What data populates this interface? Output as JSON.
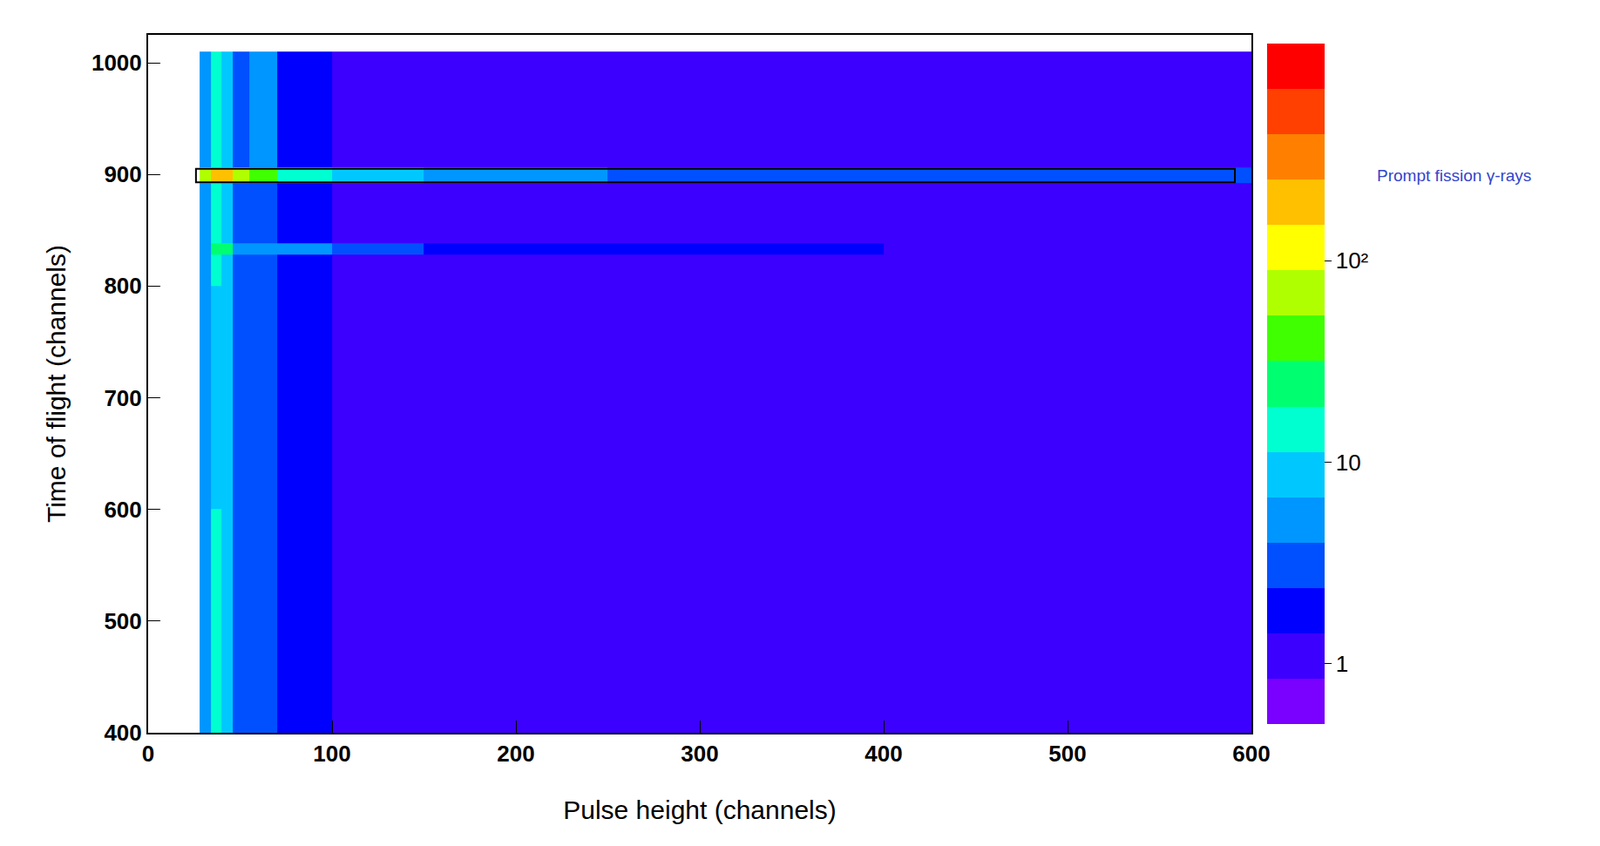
{
  "chart_data": {
    "type": "heatmap",
    "x_label": "Pulse height (channels)",
    "y_label": "Time of flight (channels)",
    "xlim": [
      0,
      600
    ],
    "ylim": [
      400,
      1025
    ],
    "xticks": [
      0,
      100,
      200,
      300,
      400,
      500,
      600
    ],
    "yticks": [
      400,
      500,
      600,
      700,
      800,
      900,
      1000
    ],
    "grid": false,
    "log": true,
    "x_bins": [
      28,
      34,
      40,
      46,
      55,
      70,
      100,
      150,
      250,
      400,
      600
    ],
    "y_bins": [
      400,
      500,
      600,
      700,
      800,
      828,
      838,
      892,
      906,
      1010
    ],
    "z": [
      [
        4,
        12,
        10,
        3,
        3,
        2,
        1.3,
        1,
        1,
        0.9
      ],
      [
        4,
        12,
        9,
        3,
        3,
        2,
        1.3,
        1,
        1,
        0.9
      ],
      [
        4,
        11,
        9,
        3,
        3,
        2,
        1.3,
        1,
        1,
        0.9
      ],
      [
        4,
        11,
        9,
        3,
        3.5,
        2,
        1.3,
        1,
        1,
        0.9
      ],
      [
        4,
        12,
        9,
        3,
        3.5,
        2.2,
        1.4,
        1,
        1,
        0.9
      ],
      [
        6,
        25,
        20,
        6,
        6,
        4,
        2.5,
        2,
        1.5,
        1.2
      ],
      [
        4,
        12,
        10,
        3,
        3.5,
        2.2,
        1.4,
        1.1,
        1,
        0.9
      ],
      [
        60,
        200,
        160,
        60,
        40,
        15,
        8,
        5,
        3,
        2.5
      ],
      [
        4,
        14,
        11,
        3.5,
        4,
        2.3,
        1.4,
        1.1,
        1,
        0.9
      ]
    ],
    "colorbar": {
      "range": [
        0.5,
        1200
      ],
      "ticks": [
        1,
        10,
        {
          "value": 100,
          "label": "10²"
        }
      ]
    },
    "annotations": [
      {
        "text": "Prompt fission γ-rays",
        "box": {
          "x": [
            26,
            591
          ],
          "y": [
            893,
            905
          ]
        }
      }
    ]
  }
}
